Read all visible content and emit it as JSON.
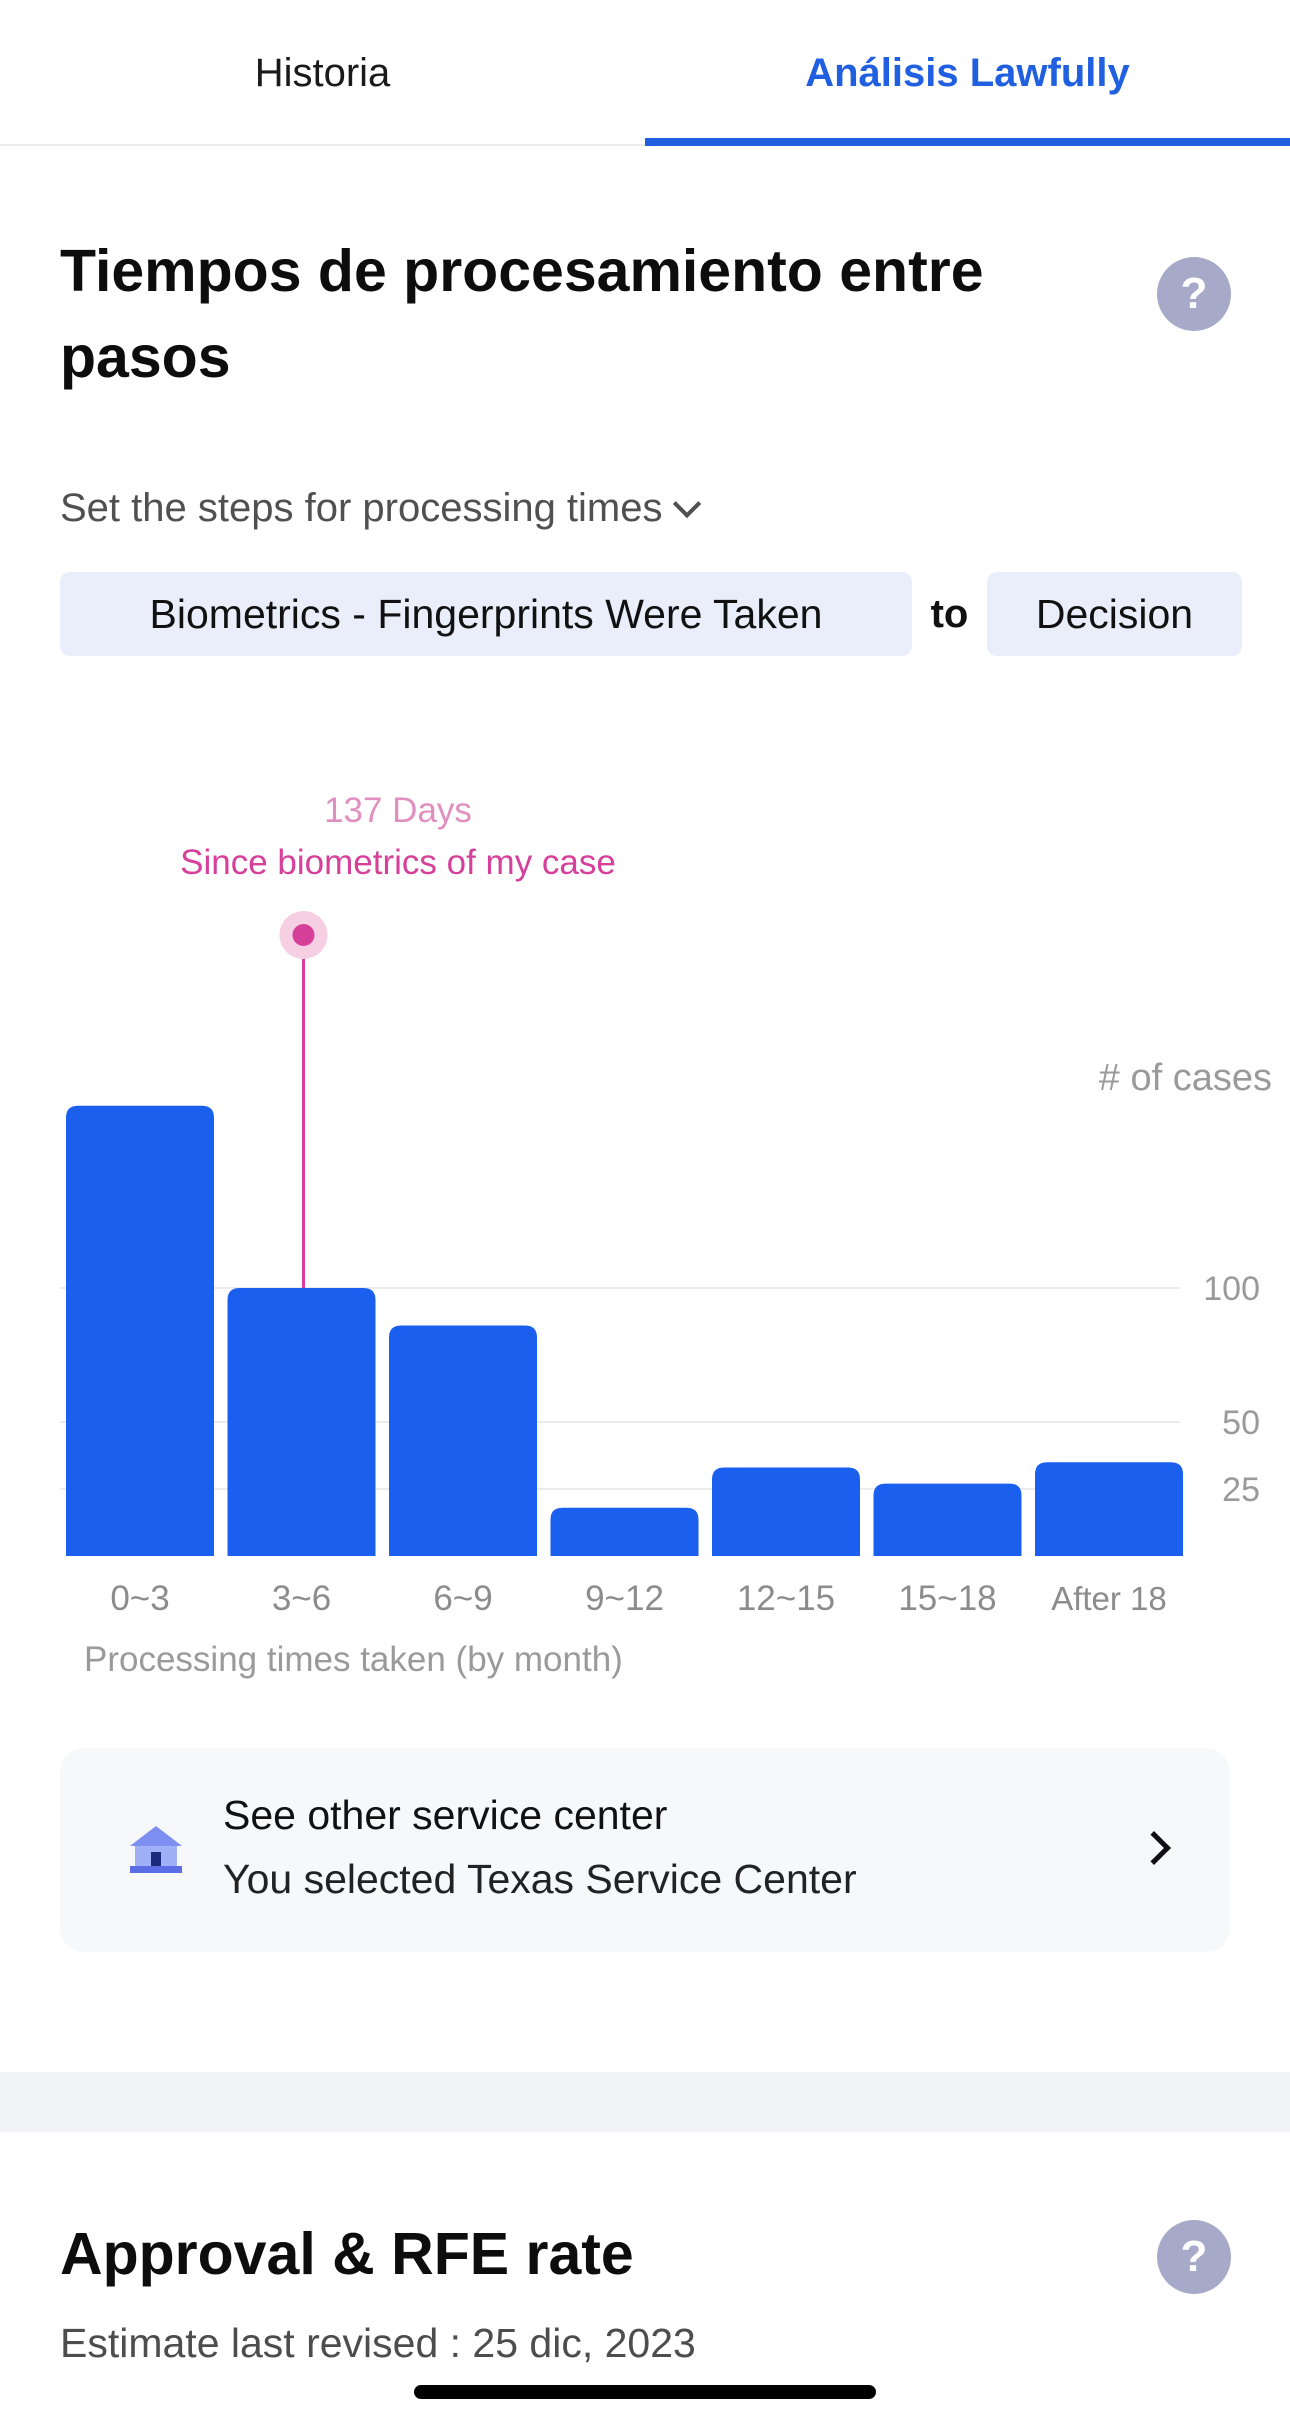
{
  "tabs": [
    {
      "label": "Historia",
      "active": false
    },
    {
      "label": "Análisis Lawfully",
      "active": true
    }
  ],
  "section1": {
    "title": "Tiempos de procesamiento entre pasos",
    "steps_label": "Set the steps for processing times",
    "from_step": "Biometrics - Fingerprints Were Taken",
    "to_word": "to",
    "to_step": "Decision"
  },
  "chart_data": {
    "type": "bar",
    "ylabel": "# of cases",
    "xlabel": "Processing times taken (by month)",
    "categories": [
      "0~3",
      "3~6",
      "6~9",
      "9~12",
      "12~15",
      "15~18",
      "After 18"
    ],
    "values": [
      168,
      100,
      86,
      18,
      33,
      27,
      35
    ],
    "yticks": [
      25,
      50,
      100
    ],
    "ylim": [
      0,
      170
    ],
    "grid": true,
    "bar_color": "#1b5fef",
    "marker": {
      "category": "3~6",
      "value_label": "137 Days",
      "label": "Since biometrics of my case",
      "color": "#d6409a"
    }
  },
  "service_center": {
    "title": "See other service center",
    "subtitle": "You selected Texas Service Center",
    "icon": "building-icon"
  },
  "section2": {
    "title": "Approval & RFE rate",
    "revised": "Estimate last revised : 25 dic, 2023"
  },
  "help_icon": "question-icon"
}
